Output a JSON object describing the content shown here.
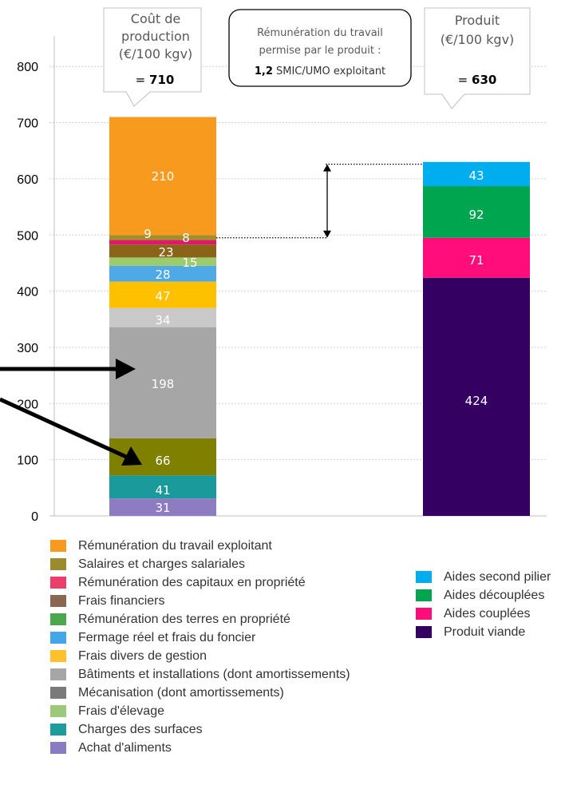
{
  "chart_data": {
    "type": "bar",
    "stacked": true,
    "ylim": [
      0,
      800
    ],
    "yticks": [
      0,
      100,
      200,
      300,
      400,
      500,
      600,
      700,
      800
    ],
    "grid": true,
    "legend_position": "bottom",
    "bars": [
      {
        "id": "cost",
        "segments": [
          {
            "name": "Achat d'aliments",
            "value": 31,
            "label": "31",
            "color": "#8E7CC3"
          },
          {
            "name": "Charges des surfaces",
            "value": 41,
            "label": "41",
            "color": "#1A9A9A"
          },
          {
            "name": "Salaires et charges salariales",
            "value": 66,
            "label": "66",
            "color": "#7F7F00"
          },
          {
            "name": "Bâtiments et installations (dont amortissements)",
            "value": 198,
            "label": "198",
            "color": "#A6A6A6"
          },
          {
            "name": "Mécanisation (dont amortissements)",
            "value": 34,
            "label": "34",
            "color": "#C9C9C9"
          },
          {
            "name": "Frais divers de gestion",
            "value": 47,
            "label": "47",
            "color": "#FFC000"
          },
          {
            "name": "Fermage réel et frais du foncier",
            "value": 28,
            "label": "28",
            "color": "#4EA9E6"
          },
          {
            "name": "Frais d'élevage",
            "value": 15,
            "label": "15",
            "color": "#9BCB6B"
          },
          {
            "name": "Frais financiers",
            "value": 23,
            "label": "23",
            "color": "#8B6318"
          },
          {
            "name": "Rémunération des capitaux en propriété",
            "value": 8,
            "label": "8",
            "color": "#E0186C"
          },
          {
            "name": "Rémunération des terres en propriété",
            "value": 9,
            "label": "9",
            "color": "#A38F28"
          },
          {
            "name": "Rémunération du travail exploitant",
            "value": 210,
            "label": "210",
            "color": "#F79A1E"
          }
        ]
      },
      {
        "id": "product",
        "segments": [
          {
            "name": "Produit viande",
            "value": 424,
            "label": "424",
            "color": "#340061"
          },
          {
            "name": "Aides couplées",
            "value": 71,
            "label": "71",
            "color": "#FF0D7B"
          },
          {
            "name": "Aides découplées",
            "value": 92,
            "label": "92",
            "color": "#00A550"
          },
          {
            "name": "Aides second pilier",
            "value": 43,
            "label": "43",
            "color": "#00ADEF"
          }
        ]
      }
    ],
    "callouts": {
      "cost": {
        "lines": [
          "Coût de",
          "production",
          "(€/100 kgv)"
        ],
        "total_prefix": "= ",
        "total": "710"
      },
      "remuneration": {
        "lines": [
          "Rémunération du travail",
          "permise par le produit :"
        ],
        "ratio": "1,2",
        "ratio_suffix": " SMIC/UMO exploitant"
      },
      "product": {
        "lines": [
          "Produit",
          "(€/100 kgv)"
        ],
        "total_prefix": "= ",
        "total": "630"
      }
    },
    "gap_marker": {
      "from": 495,
      "to": 626
    },
    "legend_cost": [
      {
        "label": "Rémunération du travail exploitant",
        "color": "#F79A1E"
      },
      {
        "label": "Salaires et charges salariales",
        "color": "#9C8A2E"
      },
      {
        "label": "Rémunération des capitaux en propriété",
        "color": "#E93F6A"
      },
      {
        "label": "Frais financiers",
        "color": "#8B6650"
      },
      {
        "label": "Rémunération des terres en propriété",
        "color": "#4CA64E"
      },
      {
        "label": "Fermage réel et frais du foncier",
        "color": "#43A6E8"
      },
      {
        "label": "Frais divers de gestion",
        "color": "#FFC02E"
      },
      {
        "label": "Bâtiments et installations (dont amortissements)",
        "color": "#A6A6A6"
      },
      {
        "label": "Mécanisation (dont amortissements)",
        "color": "#7A7A7A"
      },
      {
        "label": "Frais d'élevage",
        "color": "#9CC87A"
      },
      {
        "label": "Charges des surfaces",
        "color": "#1E9C9C"
      },
      {
        "label": "Achat d'aliments",
        "color": "#8A7CC2"
      }
    ],
    "legend_product": [
      {
        "label": "Aides second pilier",
        "color": "#00ADEF"
      },
      {
        "label": "Aides découplées",
        "color": "#00A550"
      },
      {
        "label": "Aides couplées",
        "color": "#FF0D7B"
      },
      {
        "label": "Produit viande",
        "color": "#340061"
      }
    ]
  }
}
